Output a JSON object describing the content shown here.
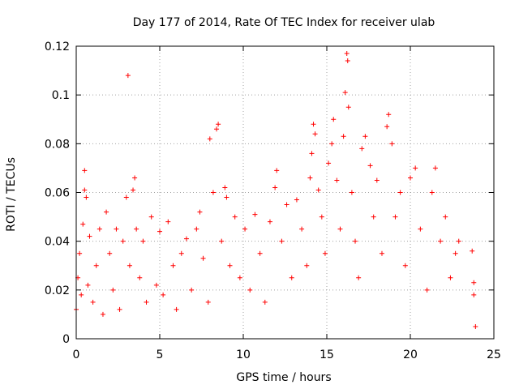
{
  "chart_data": {
    "type": "scatter",
    "title": "Day 177 of 2014, Rate Of TEC Index for receiver ulab",
    "xlabel": "GPS time / hours",
    "ylabel": "ROTI / TECUs",
    "xlim": [
      0,
      25
    ],
    "ylim": [
      0,
      0.12
    ],
    "x_ticks": [
      0,
      5,
      10,
      15,
      20,
      25
    ],
    "y_ticks": [
      0,
      0.02,
      0.04,
      0.06,
      0.08,
      0.1,
      0.12
    ],
    "x_tick_labels": [
      "0",
      "5",
      "10",
      "15",
      "20",
      "25"
    ],
    "y_tick_labels": [
      "0",
      "0.02",
      "0.04",
      "0.06",
      "0.08",
      "0.1",
      "0.12"
    ],
    "grid": true,
    "marker": "+",
    "series_color": "#ff0000",
    "series": [
      {
        "points": [
          [
            0.0,
            0.012
          ],
          [
            0.1,
            0.025
          ],
          [
            0.2,
            0.035
          ],
          [
            0.3,
            0.018
          ],
          [
            0.4,
            0.047
          ],
          [
            0.5,
            0.069
          ],
          [
            0.5,
            0.061
          ],
          [
            0.6,
            0.058
          ],
          [
            0.7,
            0.022
          ],
          [
            0.8,
            0.042
          ],
          [
            1.0,
            0.015
          ],
          [
            1.2,
            0.03
          ],
          [
            1.4,
            0.045
          ],
          [
            1.6,
            0.01
          ],
          [
            1.8,
            0.052
          ],
          [
            2.0,
            0.035
          ],
          [
            2.2,
            0.02
          ],
          [
            2.4,
            0.045
          ],
          [
            2.6,
            0.012
          ],
          [
            2.8,
            0.04
          ],
          [
            3.0,
            0.058
          ],
          [
            3.1,
            0.108
          ],
          [
            3.2,
            0.03
          ],
          [
            3.4,
            0.061
          ],
          [
            3.5,
            0.066
          ],
          [
            3.6,
            0.045
          ],
          [
            3.8,
            0.025
          ],
          [
            4.0,
            0.04
          ],
          [
            4.2,
            0.015
          ],
          [
            4.5,
            0.05
          ],
          [
            4.8,
            0.022
          ],
          [
            5.0,
            0.044
          ],
          [
            5.2,
            0.018
          ],
          [
            5.5,
            0.048
          ],
          [
            5.8,
            0.03
          ],
          [
            6.0,
            0.012
          ],
          [
            6.3,
            0.035
          ],
          [
            6.6,
            0.041
          ],
          [
            6.9,
            0.02
          ],
          [
            7.2,
            0.045
          ],
          [
            7.4,
            0.052
          ],
          [
            7.6,
            0.033
          ],
          [
            7.9,
            0.015
          ],
          [
            8.0,
            0.082
          ],
          [
            8.2,
            0.06
          ],
          [
            8.4,
            0.086
          ],
          [
            8.5,
            0.088
          ],
          [
            8.7,
            0.04
          ],
          [
            8.9,
            0.062
          ],
          [
            9.0,
            0.058
          ],
          [
            9.2,
            0.03
          ],
          [
            9.5,
            0.05
          ],
          [
            9.8,
            0.025
          ],
          [
            10.1,
            0.045
          ],
          [
            10.4,
            0.02
          ],
          [
            10.7,
            0.051
          ],
          [
            11.0,
            0.035
          ],
          [
            11.3,
            0.015
          ],
          [
            11.6,
            0.048
          ],
          [
            11.9,
            0.062
          ],
          [
            12.0,
            0.069
          ],
          [
            12.3,
            0.04
          ],
          [
            12.6,
            0.055
          ],
          [
            12.9,
            0.025
          ],
          [
            13.2,
            0.057
          ],
          [
            13.5,
            0.045
          ],
          [
            13.8,
            0.03
          ],
          [
            14.0,
            0.066
          ],
          [
            14.1,
            0.076
          ],
          [
            14.2,
            0.088
          ],
          [
            14.3,
            0.084
          ],
          [
            14.5,
            0.061
          ],
          [
            14.7,
            0.05
          ],
          [
            14.9,
            0.035
          ],
          [
            15.1,
            0.072
          ],
          [
            15.3,
            0.08
          ],
          [
            15.4,
            0.09
          ],
          [
            15.6,
            0.065
          ],
          [
            15.8,
            0.045
          ],
          [
            16.0,
            0.083
          ],
          [
            16.1,
            0.101
          ],
          [
            16.2,
            0.117
          ],
          [
            16.25,
            0.114
          ],
          [
            16.3,
            0.095
          ],
          [
            16.5,
            0.06
          ],
          [
            16.7,
            0.04
          ],
          [
            16.9,
            0.025
          ],
          [
            17.1,
            0.078
          ],
          [
            17.3,
            0.083
          ],
          [
            17.6,
            0.071
          ],
          [
            17.8,
            0.05
          ],
          [
            18.0,
            0.065
          ],
          [
            18.3,
            0.035
          ],
          [
            18.6,
            0.087
          ],
          [
            18.7,
            0.092
          ],
          [
            18.9,
            0.08
          ],
          [
            19.1,
            0.05
          ],
          [
            19.4,
            0.06
          ],
          [
            19.7,
            0.03
          ],
          [
            20.0,
            0.066
          ],
          [
            20.3,
            0.07
          ],
          [
            20.6,
            0.045
          ],
          [
            21.0,
            0.02
          ],
          [
            21.3,
            0.06
          ],
          [
            21.5,
            0.07
          ],
          [
            21.8,
            0.04
          ],
          [
            22.1,
            0.05
          ],
          [
            22.4,
            0.025
          ],
          [
            22.7,
            0.035
          ],
          [
            22.9,
            0.04
          ],
          [
            23.7,
            0.036
          ],
          [
            23.8,
            0.023
          ],
          [
            23.8,
            0.018
          ],
          [
            23.9,
            0.005
          ]
        ]
      }
    ]
  }
}
